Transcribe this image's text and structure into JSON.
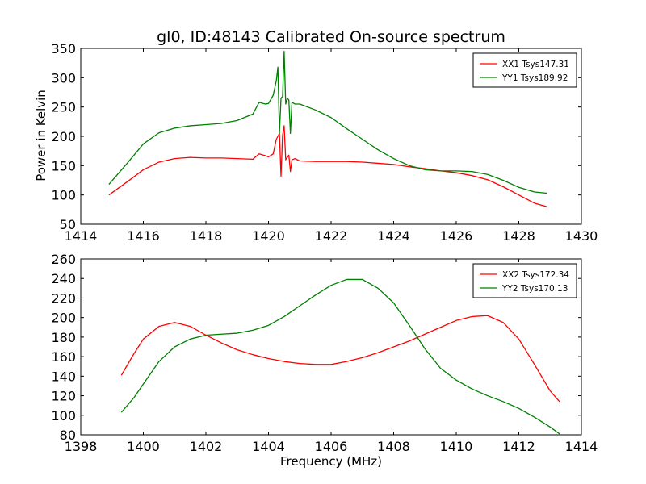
{
  "figure": {
    "title": "gl0, ID:48143 Calibrated On-source spectrum",
    "xlabel": "Frequency (MHz)",
    "ylabel": "Power in Kelvin"
  },
  "chart_data": [
    {
      "type": "line",
      "title": "gl0, ID:48143 Calibrated On-source spectrum",
      "xlabel": "",
      "ylabel": "Power in Kelvin",
      "xlim": [
        1414,
        1430
      ],
      "ylim": [
        50,
        350
      ],
      "xticks": [
        1414,
        1416,
        1418,
        1420,
        1422,
        1424,
        1426,
        1428,
        1430
      ],
      "yticks": [
        50,
        100,
        150,
        200,
        250,
        300,
        350
      ],
      "legend": "top-right",
      "grid": false,
      "series": [
        {
          "name": "XX1 Tsys147.31",
          "color": "#ff0000",
          "x": [
            1414.9,
            1415.5,
            1416.0,
            1416.5,
            1417.0,
            1417.5,
            1418.0,
            1418.5,
            1419.0,
            1419.5,
            1419.7,
            1419.9,
            1420.0,
            1420.15,
            1420.25,
            1420.35,
            1420.4,
            1420.45,
            1420.5,
            1420.55,
            1420.65,
            1420.7,
            1420.75,
            1420.85,
            1421.0,
            1421.5,
            1422.0,
            1422.5,
            1423.0,
            1423.5,
            1424.0,
            1424.5,
            1425.0,
            1425.5,
            1426.0,
            1426.5,
            1427.0,
            1427.5,
            1428.0,
            1428.5,
            1428.9
          ],
          "y": [
            100,
            123,
            143,
            156,
            162,
            164,
            163,
            163,
            162,
            161,
            170,
            167,
            165,
            170,
            195,
            205,
            132,
            202,
            218,
            160,
            168,
            140,
            160,
            162,
            158,
            157,
            157,
            157,
            156,
            154,
            152,
            148,
            145,
            141,
            138,
            133,
            126,
            114,
            100,
            86,
            80
          ]
        },
        {
          "name": "YY1 Tsys189.92",
          "color": "#008000",
          "x": [
            1414.9,
            1415.5,
            1416.0,
            1416.5,
            1417.0,
            1417.5,
            1418.0,
            1418.5,
            1419.0,
            1419.5,
            1419.7,
            1419.9,
            1420.0,
            1420.15,
            1420.25,
            1420.3,
            1420.35,
            1420.4,
            1420.45,
            1420.5,
            1420.55,
            1420.6,
            1420.65,
            1420.7,
            1420.75,
            1420.85,
            1421.0,
            1421.5,
            1422.0,
            1422.5,
            1423.0,
            1423.5,
            1424.0,
            1424.5,
            1425.0,
            1425.5,
            1426.0,
            1426.5,
            1427.0,
            1427.5,
            1428.0,
            1428.5,
            1428.9
          ],
          "y": [
            118,
            155,
            187,
            206,
            214,
            218,
            220,
            222,
            227,
            238,
            258,
            255,
            256,
            270,
            295,
            318,
            205,
            265,
            268,
            345,
            255,
            265,
            262,
            205,
            258,
            255,
            255,
            245,
            232,
            213,
            195,
            177,
            162,
            150,
            143,
            141,
            141,
            140,
            135,
            125,
            113,
            105,
            103
          ]
        }
      ]
    },
    {
      "type": "line",
      "title": "",
      "xlabel": "Frequency (MHz)",
      "ylabel": "",
      "xlim": [
        1398,
        1414
      ],
      "ylim": [
        80,
        260
      ],
      "xticks": [
        1398,
        1400,
        1402,
        1404,
        1406,
        1408,
        1410,
        1412,
        1414
      ],
      "yticks": [
        80,
        100,
        120,
        140,
        160,
        180,
        200,
        220,
        240,
        260
      ],
      "legend": "top-right",
      "grid": false,
      "series": [
        {
          "name": "XX2 Tsys172.34",
          "color": "#ff0000",
          "x": [
            1399.3,
            1399.7,
            1400.0,
            1400.5,
            1401.0,
            1401.5,
            1402.0,
            1402.5,
            1403.0,
            1403.5,
            1404.0,
            1404.5,
            1405.0,
            1405.5,
            1406.0,
            1406.5,
            1407.0,
            1407.5,
            1408.0,
            1408.5,
            1409.0,
            1409.5,
            1410.0,
            1410.5,
            1411.0,
            1411.5,
            1412.0,
            1412.5,
            1413.0,
            1413.3
          ],
          "y": [
            141,
            163,
            178,
            191,
            195,
            191,
            182,
            174,
            167,
            162,
            158,
            155,
            153,
            152,
            152,
            155,
            159,
            164,
            170,
            176,
            183,
            190,
            197,
            201,
            202,
            195,
            178,
            152,
            125,
            114
          ]
        },
        {
          "name": "YY2 Tsys170.13",
          "color": "#008000",
          "x": [
            1399.3,
            1399.7,
            1400.0,
            1400.5,
            1401.0,
            1401.5,
            1402.0,
            1402.5,
            1403.0,
            1403.5,
            1404.0,
            1404.5,
            1405.0,
            1405.5,
            1406.0,
            1406.5,
            1407.0,
            1407.5,
            1408.0,
            1408.5,
            1409.0,
            1409.5,
            1410.0,
            1410.5,
            1411.0,
            1411.5,
            1412.0,
            1412.5,
            1413.0,
            1413.3
          ],
          "y": [
            103,
            118,
            132,
            155,
            170,
            178,
            182,
            183,
            184,
            187,
            192,
            201,
            212,
            223,
            233,
            239,
            239,
            230,
            215,
            192,
            168,
            148,
            136,
            127,
            120,
            114,
            107,
            98,
            88,
            81
          ]
        }
      ]
    }
  ]
}
